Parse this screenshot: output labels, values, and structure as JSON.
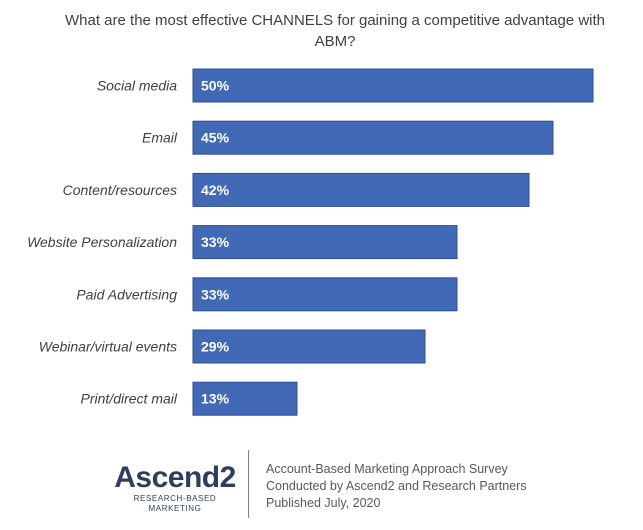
{
  "chart_data": {
    "type": "bar",
    "orientation": "horizontal",
    "title": "What are the most effective CHANNELS for gaining a competitive advantage with ABM?",
    "categories": [
      "Social media",
      "Email",
      "Content/resources",
      "Website Personalization",
      "Paid Advertising",
      "Webinar/virtual events",
      "Print/direct mail"
    ],
    "values": [
      50,
      45,
      42,
      33,
      33,
      29,
      13
    ],
    "value_labels": [
      "50%",
      "45%",
      "42%",
      "33%",
      "33%",
      "29%",
      "13%"
    ],
    "xlabel": "",
    "ylabel": "",
    "xlim": [
      0,
      50
    ],
    "grid": false,
    "bar_color": "#4169b6"
  },
  "footer": {
    "logo_text": "Ascend2",
    "logo_tagline": "RESEARCH-BASED MARKETING",
    "source_lines": [
      "Account-Based Marketing Approach Survey",
      "Conducted by Ascend2 and Research Partners",
      "Published July, 2020"
    ]
  }
}
